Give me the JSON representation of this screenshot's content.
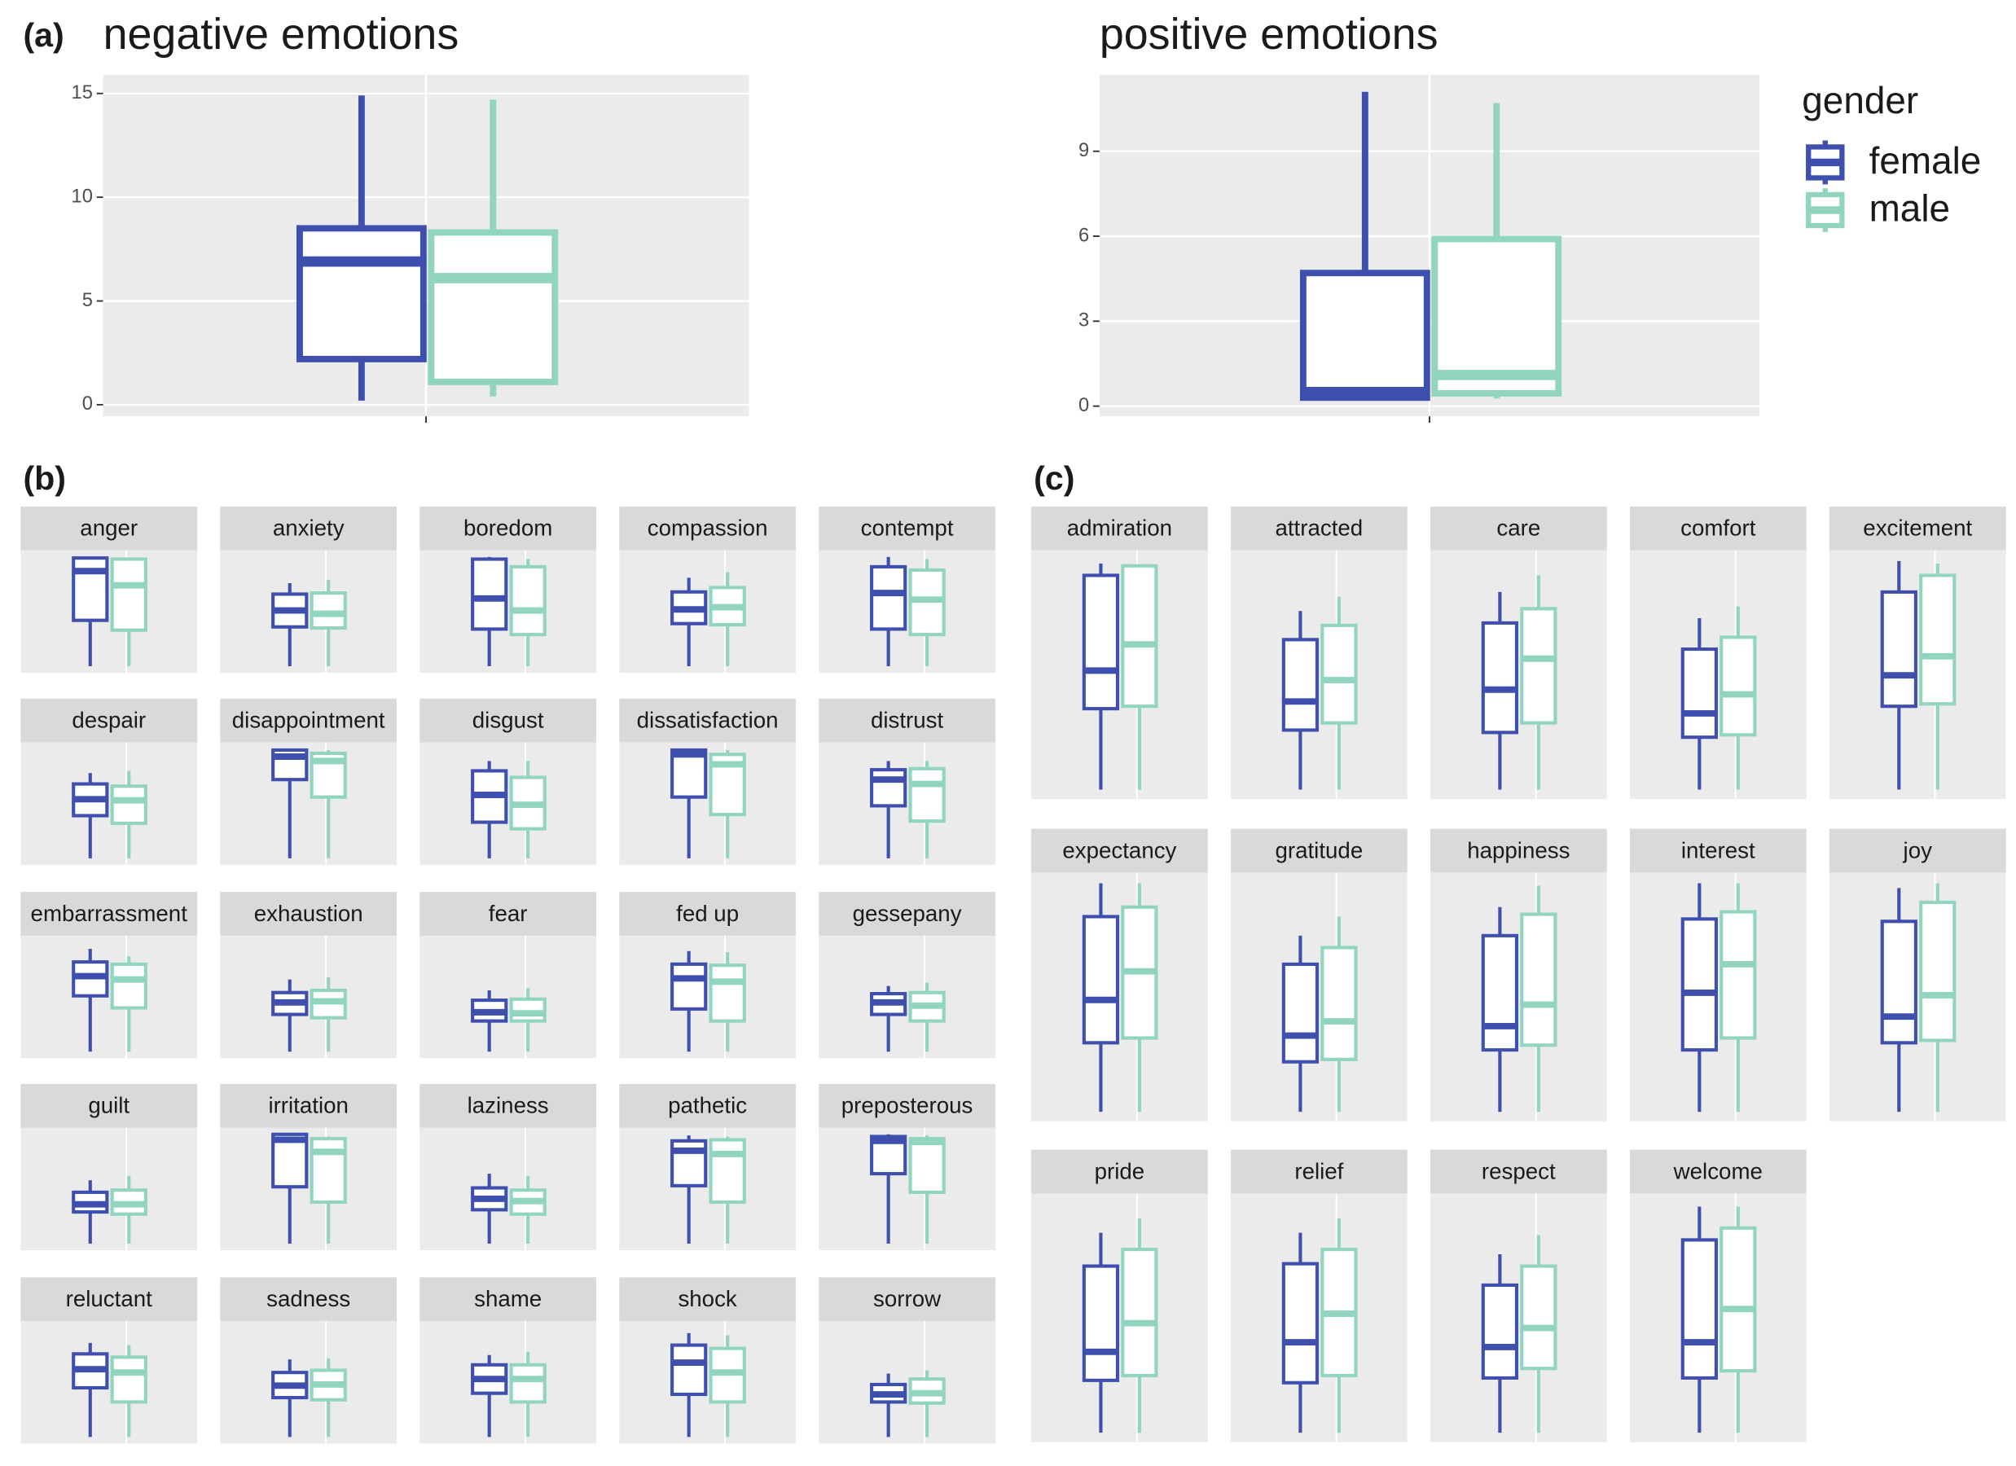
{
  "chart_data": [
    {
      "type": "box",
      "tag": "(a)",
      "title": "negative emotions",
      "ylim": [
        -0.56,
        15.9
      ],
      "yticks": [
        0,
        5,
        10,
        15
      ],
      "grid": true,
      "series": [
        {
          "color": "#3f4fad",
          "values": [
            0.2,
            2.2,
            6.9,
            8.5,
            14.9
          ]
        },
        {
          "color": "#91d5c0",
          "values": [
            0.4,
            1.1,
            6.1,
            8.3,
            14.7
          ]
        }
      ]
    },
    {
      "type": "box",
      "title": "positive emotions",
      "ylim": [
        -0.36,
        11.7
      ],
      "yticks": [
        0,
        3,
        6,
        9
      ],
      "grid": true,
      "legend_title": "gender",
      "legend": "right",
      "series": [
        {
          "name": "female",
          "color": "#3f4fad",
          "values": [
            0.2,
            0.3,
            0.5,
            4.7,
            11.1
          ]
        },
        {
          "name": "male",
          "color": "#91d5c0",
          "values": [
            0.27,
            0.45,
            1.1,
            5.9,
            10.7
          ]
        }
      ]
    },
    {
      "type": "box-facets",
      "tag": "(b)",
      "ylim": [
        -0.6,
        10.6
      ],
      "columns": 5,
      "facets": [
        {
          "title": "anger",
          "series": [
            {
              "values": [
                0,
                4.2,
                8.7,
                9.9,
                10
              ]
            },
            {
              "values": [
                0,
                3.3,
                7.4,
                9.8,
                9.8
              ]
            }
          ]
        },
        {
          "title": "anxiety",
          "series": [
            {
              "values": [
                0,
                3.6,
                5.1,
                6.6,
                7.6
              ]
            },
            {
              "values": [
                0,
                3.5,
                4.8,
                6.7,
                7.9
              ]
            }
          ]
        },
        {
          "title": "boredom",
          "series": [
            {
              "values": [
                0,
                3.4,
                6.2,
                9.8,
                10
              ]
            },
            {
              "values": [
                0,
                2.9,
                5.1,
                9.1,
                9.8
              ]
            }
          ]
        },
        {
          "title": "compassion",
          "series": [
            {
              "values": [
                0,
                3.9,
                5.2,
                6.8,
                8.1
              ]
            },
            {
              "values": [
                0,
                3.8,
                5.4,
                7.2,
                8.6
              ]
            }
          ]
        },
        {
          "title": "contempt",
          "series": [
            {
              "values": [
                0,
                3.4,
                6.7,
                9.1,
                10
              ]
            },
            {
              "values": [
                0,
                2.9,
                6.1,
                8.8,
                9.8
              ]
            }
          ]
        },
        {
          "title": "despair",
          "series": [
            {
              "values": [
                0,
                3.9,
                5.4,
                6.8,
                7.8
              ]
            },
            {
              "values": [
                0,
                3.2,
                5.3,
                6.6,
                8
              ]
            }
          ]
        },
        {
          "title": "disappointment",
          "series": [
            {
              "values": [
                0,
                7.2,
                9.3,
                9.9,
                10
              ]
            },
            {
              "values": [
                0,
                5.6,
                8.9,
                9.6,
                9.9
              ]
            }
          ]
        },
        {
          "title": "disgust",
          "series": [
            {
              "values": [
                0,
                3.3,
                5.8,
                8,
                8.9
              ]
            },
            {
              "values": [
                0,
                2.7,
                4.9,
                7.4,
                8.9
              ]
            }
          ]
        },
        {
          "title": "dissatisfaction",
          "series": [
            {
              "values": [
                0,
                5.6,
                9.5,
                9.9,
                10
              ]
            },
            {
              "values": [
                0,
                4,
                8.6,
                9.5,
                9.9
              ]
            }
          ]
        },
        {
          "title": "distrust",
          "series": [
            {
              "values": [
                0,
                4.8,
                7.2,
                8.1,
                8.9
              ]
            },
            {
              "values": [
                0,
                3.4,
                6.8,
                8.2,
                8.9
              ]
            }
          ]
        },
        {
          "title": "embarrassment",
          "series": [
            {
              "values": [
                0,
                5.1,
                6.9,
                8.2,
                9.4
              ]
            },
            {
              "values": [
                0,
                4,
                6.6,
                8,
                8.7
              ]
            }
          ]
        },
        {
          "title": "exhaustion",
          "series": [
            {
              "values": [
                0,
                3.4,
                4.5,
                5.4,
                6.6
              ]
            },
            {
              "values": [
                0,
                3.1,
                4.6,
                5.6,
                6.8
              ]
            }
          ]
        },
        {
          "title": "fear",
          "series": [
            {
              "values": [
                0,
                2.8,
                3.6,
                4.7,
                5.6
              ]
            },
            {
              "values": [
                0,
                2.8,
                3.5,
                4.8,
                5.8
              ]
            }
          ]
        },
        {
          "title": "fed up",
          "series": [
            {
              "values": [
                0,
                3.9,
                6.7,
                8,
                9.2
              ]
            },
            {
              "values": [
                0,
                2.8,
                6.4,
                7.9,
                9.1
              ]
            }
          ]
        },
        {
          "title": "gessepany",
          "series": [
            {
              "values": [
                0,
                3.4,
                4.5,
                5.3,
                6
              ]
            },
            {
              "values": [
                0,
                2.8,
                4.2,
                5.4,
                6.3
              ]
            }
          ]
        },
        {
          "title": "guilt",
          "series": [
            {
              "values": [
                0,
                2.9,
                3.6,
                4.7,
                5.8
              ]
            },
            {
              "values": [
                0,
                2.7,
                3.6,
                4.9,
                6.2
              ]
            }
          ]
        },
        {
          "title": "irritation",
          "series": [
            {
              "values": [
                0,
                5.2,
                9.5,
                10,
                10
              ]
            },
            {
              "values": [
                0,
                3.8,
                8.4,
                9.6,
                9.8
              ]
            }
          ]
        },
        {
          "title": "laziness",
          "series": [
            {
              "values": [
                0,
                3.1,
                4.1,
                5.1,
                6.4
              ]
            },
            {
              "values": [
                0,
                2.7,
                3.9,
                4.9,
                6.2
              ]
            }
          ]
        },
        {
          "title": "pathetic",
          "series": [
            {
              "values": [
                0,
                5.3,
                8.5,
                9.4,
                9.9
              ]
            },
            {
              "values": [
                0,
                3.8,
                8.2,
                9.5,
                9.8
              ]
            }
          ]
        },
        {
          "title": "preposterous",
          "series": [
            {
              "values": [
                0,
                6.4,
                9.4,
                9.8,
                10
              ]
            },
            {
              "values": [
                0,
                4.7,
                9.3,
                9.6,
                9.9
              ]
            }
          ]
        },
        {
          "title": "reluctant",
          "series": [
            {
              "values": [
                0,
                4.5,
                6.2,
                7.6,
                8.6
              ]
            },
            {
              "values": [
                0,
                3.2,
                5.9,
                7.3,
                8.4
              ]
            }
          ]
        },
        {
          "title": "sadness",
          "series": [
            {
              "values": [
                0,
                3.6,
                4.7,
                5.9,
                7.1
              ]
            },
            {
              "values": [
                0,
                3.4,
                4.8,
                6.1,
                7.2
              ]
            }
          ]
        },
        {
          "title": "shame",
          "series": [
            {
              "values": [
                0,
                4,
                5.3,
                6.6,
                7.5
              ]
            },
            {
              "values": [
                0,
                3.2,
                5.3,
                6.6,
                7.8
              ]
            }
          ]
        },
        {
          "title": "shock",
          "series": [
            {
              "values": [
                0,
                3.9,
                6.8,
                8.4,
                9.5
              ]
            },
            {
              "values": [
                0,
                3.2,
                5.9,
                8.1,
                9.3
              ]
            }
          ]
        },
        {
          "title": "sorrow",
          "series": [
            {
              "values": [
                0,
                3.2,
                3.9,
                4.8,
                5.8
              ]
            },
            {
              "values": [
                0,
                3.1,
                4,
                5.3,
                6.1
              ]
            }
          ]
        }
      ]
    },
    {
      "type": "box-facets",
      "tag": "(c)",
      "ylim": [
        -0.4,
        10.05
      ],
      "columns": 5,
      "facets": [
        {
          "title": "admiration",
          "series": [
            {
              "values": [
                0,
                3.4,
                5.0,
                9.0,
                9.5
              ]
            },
            {
              "values": [
                0,
                3.5,
                6.1,
                9.4,
                9.4
              ]
            }
          ]
        },
        {
          "title": "attracted",
          "series": [
            {
              "values": [
                0,
                2.5,
                3.7,
                6.3,
                7.5
              ]
            },
            {
              "values": [
                0,
                2.8,
                4.6,
                6.9,
                8.1
              ]
            }
          ]
        },
        {
          "title": "care",
          "series": [
            {
              "values": [
                0,
                2.4,
                4.2,
                7.0,
                8.3
              ]
            },
            {
              "values": [
                0,
                2.8,
                5.5,
                7.6,
                9.0
              ]
            }
          ]
        },
        {
          "title": "comfort",
          "series": [
            {
              "values": [
                0,
                2.2,
                3.2,
                5.9,
                7.2
              ]
            },
            {
              "values": [
                0,
                2.3,
                4.0,
                6.4,
                7.7
              ]
            }
          ]
        },
        {
          "title": "excitement",
          "series": [
            {
              "values": [
                0,
                3.5,
                4.8,
                8.3,
                9.6
              ]
            },
            {
              "values": [
                0,
                3.6,
                5.6,
                9.0,
                9.5
              ]
            }
          ]
        },
        {
          "title": "expectancy",
          "series": [
            {
              "values": [
                0,
                2.9,
                4.7,
                8.2,
                9.6
              ]
            },
            {
              "values": [
                0,
                3.1,
                5.9,
                8.6,
                9.6
              ]
            }
          ]
        },
        {
          "title": "gratitude",
          "series": [
            {
              "values": [
                0,
                2.1,
                3.2,
                6.2,
                7.4
              ]
            },
            {
              "values": [
                0,
                2.2,
                3.8,
                6.9,
                8.2
              ]
            }
          ]
        },
        {
          "title": "happiness",
          "series": [
            {
              "values": [
                0,
                2.6,
                3.6,
                7.4,
                8.6
              ]
            },
            {
              "values": [
                0,
                2.8,
                4.5,
                8.3,
                9.5
              ]
            }
          ]
        },
        {
          "title": "interest",
          "series": [
            {
              "values": [
                0,
                2.6,
                5.0,
                8.1,
                9.6
              ]
            },
            {
              "values": [
                0,
                3.1,
                6.2,
                8.4,
                9.6
              ]
            }
          ]
        },
        {
          "title": "joy",
          "series": [
            {
              "values": [
                0,
                2.9,
                4.0,
                8.0,
                9.4
              ]
            },
            {
              "values": [
                0,
                3.0,
                4.9,
                8.8,
                9.6
              ]
            }
          ]
        },
        {
          "title": "pride",
          "series": [
            {
              "values": [
                0,
                2.2,
                3.4,
                7.0,
                8.4
              ]
            },
            {
              "values": [
                0,
                2.4,
                4.6,
                7.7,
                9.0
              ]
            }
          ]
        },
        {
          "title": "relief",
          "series": [
            {
              "values": [
                0,
                2.1,
                3.8,
                7.1,
                8.4
              ]
            },
            {
              "values": [
                0,
                2.4,
                5.0,
                7.7,
                9.0
              ]
            }
          ]
        },
        {
          "title": "respect",
          "series": [
            {
              "values": [
                0,
                2.3,
                3.6,
                6.2,
                7.5
              ]
            },
            {
              "values": [
                0,
                2.7,
                4.4,
                7.0,
                8.3
              ]
            }
          ]
        },
        {
          "title": "welcome",
          "series": [
            {
              "values": [
                0,
                2.3,
                3.8,
                8.1,
                9.5
              ]
            },
            {
              "values": [
                0,
                2.6,
                5.2,
                8.6,
                9.5
              ]
            }
          ]
        }
      ]
    }
  ]
}
